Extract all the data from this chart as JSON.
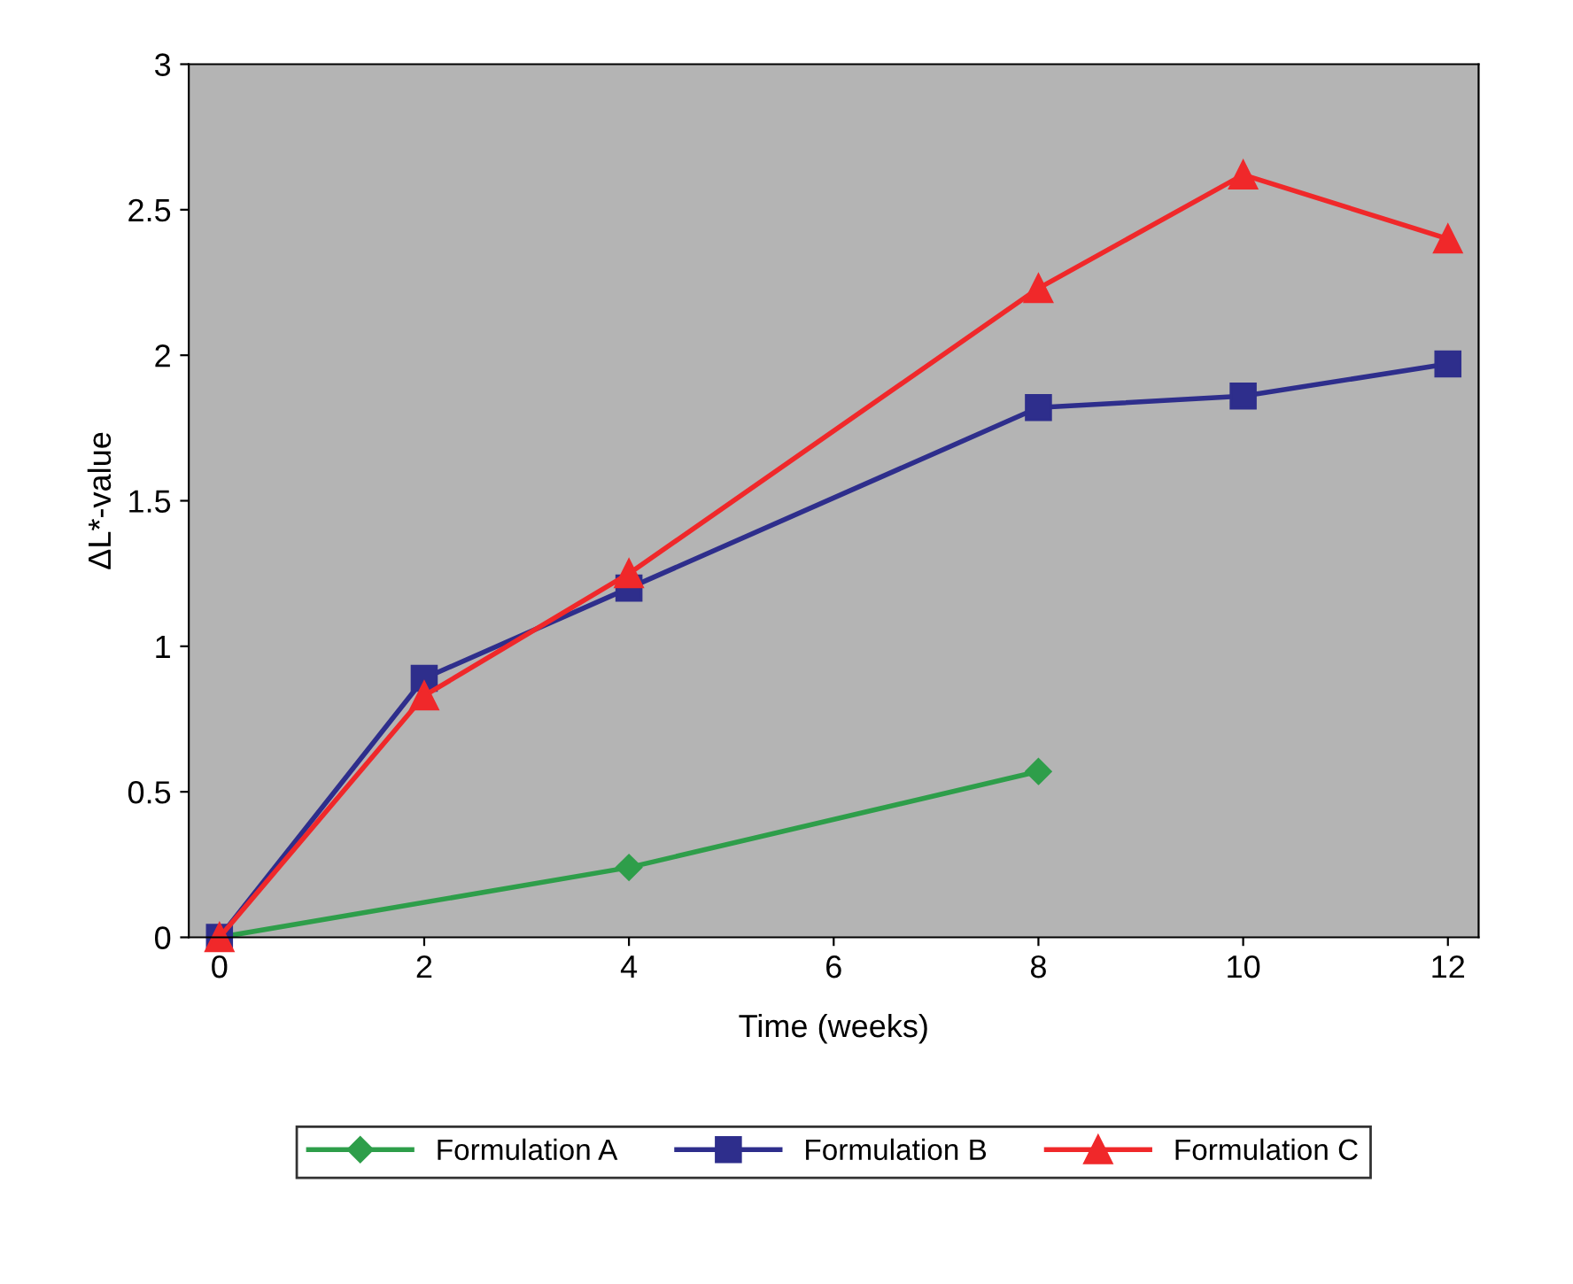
{
  "chart_data": {
    "type": "line",
    "xlabel": "Time (weeks)",
    "ylabel": "ΔL*-value",
    "xlim": [
      -0.3,
      12.3
    ],
    "xticks": [
      0,
      2,
      4,
      6,
      8,
      10,
      12
    ],
    "ylim": [
      0,
      3
    ],
    "yticks": [
      0,
      0.5,
      1,
      1.5,
      2,
      2.5,
      3
    ],
    "legend": "bottom",
    "line_style": "solid",
    "series": [
      {
        "name": "Formulation A",
        "color": "#2e9e4a",
        "marker": "diamond",
        "x": [
          0,
          4,
          8
        ],
        "values": [
          0,
          0.24,
          0.57
        ]
      },
      {
        "name": "Formulation B",
        "color": "#2e2e8c",
        "marker": "square",
        "x": [
          0,
          2,
          4,
          8,
          10,
          12
        ],
        "values": [
          0,
          0.89,
          1.2,
          1.82,
          1.86,
          1.97
        ]
      },
      {
        "name": "Formulation C",
        "color": "#f0282a",
        "marker": "triangle",
        "x": [
          0,
          2,
          4,
          8,
          10,
          12
        ],
        "values": [
          0,
          0.83,
          1.25,
          2.23,
          2.62,
          2.4
        ]
      }
    ]
  }
}
